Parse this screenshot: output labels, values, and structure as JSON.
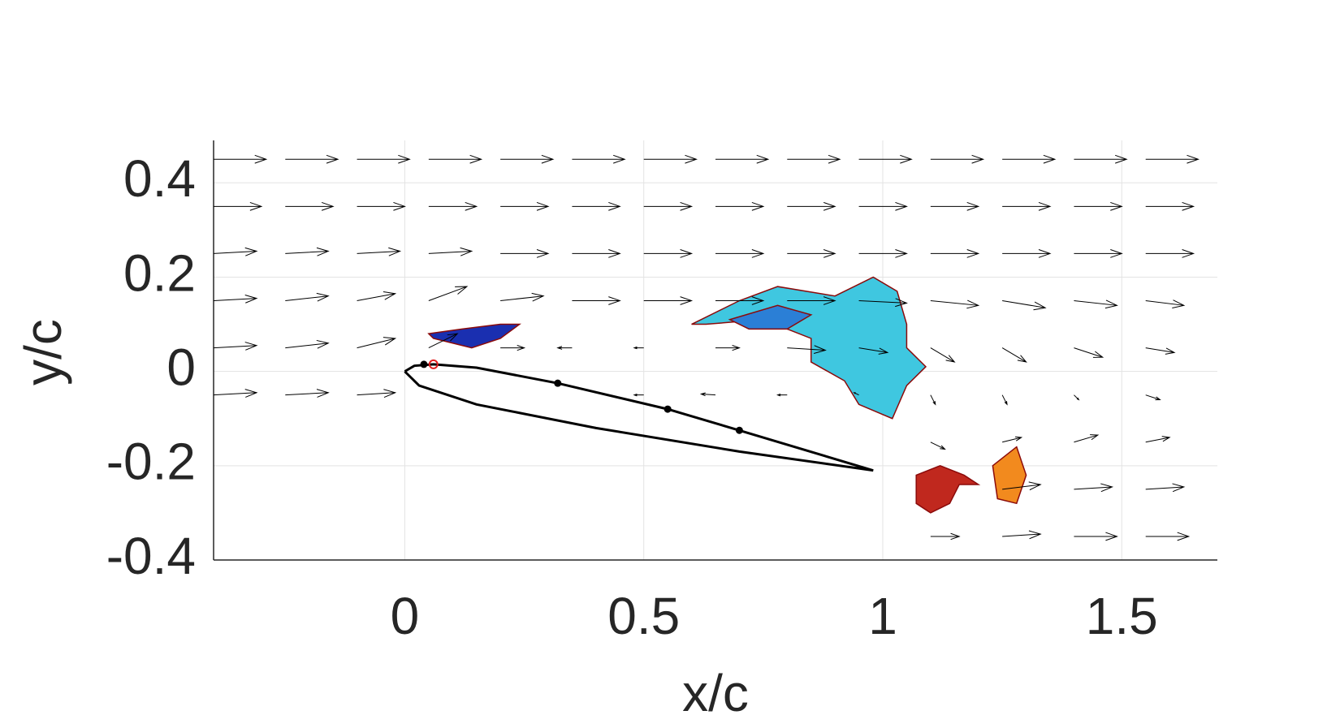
{
  "chart_data": {
    "type": "quiver",
    "x_label": "x/c",
    "y_label": "y/c",
    "xlim": [
      -0.4,
      1.7
    ],
    "ylim": [
      -0.4,
      0.49
    ],
    "xticks": [
      0,
      0.5,
      1,
      1.5
    ],
    "yticks": [
      -0.4,
      -0.2,
      0,
      0.2,
      0.4
    ],
    "grid": true,
    "arrow_color": "#000000",
    "x": [
      -0.4,
      -0.25,
      -0.1,
      0.05,
      0.2,
      0.35,
      0.5,
      0.65,
      0.8,
      0.95,
      1.1,
      1.25,
      1.4,
      1.55,
      -0.4,
      -0.25,
      -0.1,
      0.05,
      0.2,
      0.35,
      0.5,
      0.65,
      0.8,
      0.95,
      1.1,
      1.25,
      1.4,
      1.55,
      -0.4,
      -0.25,
      -0.1,
      0.05,
      0.2,
      0.35,
      0.5,
      0.65,
      0.8,
      0.95,
      1.1,
      1.25,
      1.4,
      1.55,
      -0.4,
      -0.25,
      -0.1,
      0.05,
      0.2,
      0.35,
      0.5,
      0.65,
      0.8,
      0.95,
      1.1,
      1.25,
      1.4,
      1.55,
      -0.4,
      -0.25,
      -0.1,
      0.05,
      0.2,
      0.35,
      0.5,
      0.65,
      0.8,
      0.95,
      1.1,
      1.25,
      1.4,
      1.55,
      -0.4,
      -0.25,
      -0.1,
      0.5,
      0.65,
      0.8,
      0.95,
      1.1,
      1.25,
      1.4,
      1.55,
      1.1,
      1.25,
      1.4,
      1.55,
      1.25,
      1.4,
      1.55,
      1.1,
      1.25,
      1.4,
      1.55
    ],
    "y": [
      0.45,
      0.45,
      0.45,
      0.45,
      0.45,
      0.45,
      0.45,
      0.45,
      0.45,
      0.45,
      0.45,
      0.45,
      0.45,
      0.45,
      0.35,
      0.35,
      0.35,
      0.35,
      0.35,
      0.35,
      0.35,
      0.35,
      0.35,
      0.35,
      0.35,
      0.35,
      0.35,
      0.35,
      0.25,
      0.25,
      0.25,
      0.25,
      0.25,
      0.25,
      0.25,
      0.25,
      0.25,
      0.25,
      0.25,
      0.25,
      0.25,
      0.25,
      0.15,
      0.15,
      0.15,
      0.15,
      0.15,
      0.15,
      0.15,
      0.15,
      0.15,
      0.15,
      0.15,
      0.15,
      0.15,
      0.15,
      0.05,
      0.05,
      0.05,
      0.05,
      0.05,
      0.05,
      0.05,
      0.05,
      0.05,
      0.05,
      0.05,
      0.05,
      0.05,
      0.05,
      -0.05,
      -0.05,
      -0.05,
      -0.05,
      -0.05,
      -0.05,
      -0.05,
      -0.05,
      -0.05,
      -0.05,
      -0.05,
      -0.15,
      -0.15,
      -0.15,
      -0.15,
      -0.25,
      -0.25,
      -0.25,
      -0.35,
      -0.35,
      -0.35,
      -0.35
    ],
    "u": [
      1.1,
      1.1,
      1.1,
      1.1,
      1.1,
      1.1,
      1.1,
      1.1,
      1.1,
      1.1,
      1.1,
      1.1,
      1.1,
      1.1,
      1,
      1,
      1,
      1,
      1,
      1,
      1,
      1,
      1,
      1,
      1,
      1,
      1,
      1,
      0.9,
      0.9,
      0.9,
      0.9,
      1,
      1,
      1,
      1,
      1,
      1,
      1,
      1,
      1,
      1,
      0.9,
      0.9,
      0.8,
      0.8,
      0.9,
      1,
      1,
      1,
      1,
      1,
      1,
      0.9,
      0.9,
      0.8,
      0.9,
      0.9,
      0.8,
      0.6,
      0.5,
      -0.3,
      -0.2,
      0.5,
      0.8,
      0.6,
      0.5,
      0.5,
      0.6,
      0.6,
      0.9,
      0.9,
      0.8,
      -0.2,
      -0.3,
      -0.2,
      -0.1,
      0.1,
      0.1,
      0.1,
      0.3,
      0.3,
      0.4,
      0.5,
      0.5,
      0.8,
      0.8,
      0.8,
      0.6,
      0.8,
      0.9,
      0.9
    ],
    "v": [
      0,
      0,
      0,
      0,
      0,
      0,
      0,
      0,
      0,
      0,
      0,
      0,
      0,
      0,
      0,
      0,
      0,
      0,
      0,
      0,
      0,
      0,
      0,
      0,
      0,
      0,
      0,
      0,
      0.05,
      0.05,
      0.05,
      0.05,
      0,
      0,
      0,
      0,
      0,
      0,
      0,
      0,
      0,
      0,
      0.05,
      0.1,
      0.15,
      0.3,
      0.1,
      0,
      0,
      0,
      0,
      -0.05,
      -0.1,
      -0.15,
      -0.1,
      -0.1,
      0.05,
      0.1,
      0.2,
      0.3,
      0,
      0,
      0,
      0,
      -0.05,
      -0.1,
      -0.3,
      -0.3,
      -0.2,
      -0.1,
      0.05,
      0.05,
      0.05,
      0,
      0.02,
      0,
      0.05,
      -0.2,
      -0.2,
      -0.1,
      -0.1,
      -0.15,
      0.1,
      0.15,
      0.1,
      0.1,
      0.05,
      0.05,
      0,
      0.05,
      0,
      0
    ],
    "regions": [
      {
        "color": "#1a2fb0",
        "x": [
          0.05,
          0.12,
          0.2,
          0.24,
          0.2,
          0.14,
          0.1,
          0.06
        ],
        "y": [
          0.08,
          0.09,
          0.1,
          0.1,
          0.07,
          0.05,
          0.06,
          0.07
        ]
      },
      {
        "color": "#3fc7e0",
        "x": [
          0.6,
          0.7,
          0.78,
          0.9,
          0.98,
          1.03,
          1.05,
          1.05,
          1.09,
          1.05,
          1.02,
          0.95,
          0.92,
          0.85,
          0.85,
          0.75,
          0.63
        ],
        "y": [
          0.1,
          0.15,
          0.18,
          0.16,
          0.2,
          0.17,
          0.1,
          0.05,
          0.01,
          -0.03,
          -0.1,
          -0.07,
          -0.02,
          0.02,
          0.07,
          0.11,
          0.1
        ]
      },
      {
        "color": "#2b7fd6",
        "x": [
          0.68,
          0.78,
          0.85,
          0.8,
          0.72
        ],
        "y": [
          0.11,
          0.14,
          0.12,
          0.09,
          0.09
        ]
      },
      {
        "color": "#c0281e",
        "x": [
          1.07,
          1.12,
          1.17,
          1.2,
          1.16,
          1.14,
          1.1,
          1.07
        ],
        "y": [
          -0.22,
          -0.2,
          -0.22,
          -0.24,
          -0.24,
          -0.28,
          -0.3,
          -0.28
        ]
      },
      {
        "color": "#f28a1e",
        "x": [
          1.23,
          1.28,
          1.3,
          1.28,
          1.24
        ],
        "y": [
          -0.2,
          -0.16,
          -0.22,
          -0.28,
          -0.27
        ]
      }
    ],
    "airfoil": {
      "color": "#000000",
      "x": [
        0,
        0.02,
        0.06,
        0.15,
        0.32,
        0.55,
        0.7,
        0.98,
        0.7,
        0.4,
        0.15,
        0.03,
        0
      ],
      "y": [
        0,
        0.012,
        0.015,
        0.008,
        -0.025,
        -0.08,
        -0.125,
        -0.21,
        -0.17,
        -0.12,
        -0.07,
        -0.03,
        0
      ]
    },
    "markers": {
      "color": "#000000",
      "x": [
        0.04,
        0.32,
        0.55,
        0.7
      ],
      "y": [
        0.015,
        -0.025,
        -0.08,
        -0.125
      ]
    },
    "open_marker": {
      "color": "#e02020",
      "x": 0.06,
      "y": 0.015
    }
  }
}
